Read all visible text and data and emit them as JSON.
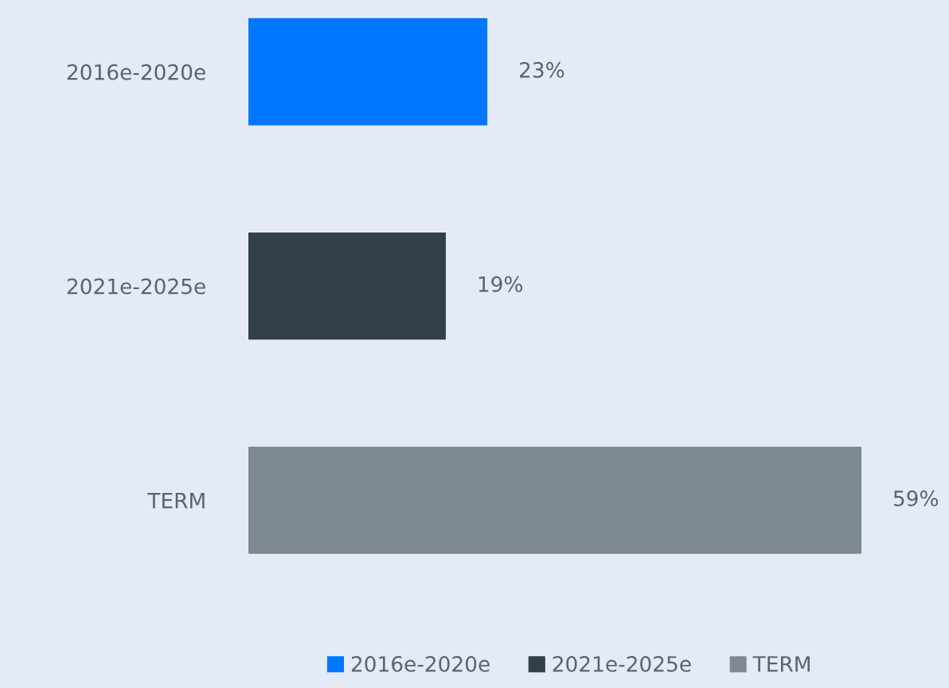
{
  "chart_data": {
    "type": "bar",
    "orientation": "horizontal",
    "categories": [
      "2016e-2020e",
      "2021e-2025e",
      "TERM"
    ],
    "series": [
      {
        "name": "2016e-2020e",
        "color": "#0077ff",
        "values": [
          23,
          null,
          null
        ],
        "value_labels": [
          "23%",
          null,
          null
        ]
      },
      {
        "name": "2021e-2025e",
        "color": "#333f4a",
        "values": [
          null,
          19,
          null
        ],
        "value_labels": [
          null,
          "19%",
          null
        ]
      },
      {
        "name": "TERM",
        "color": "#7f8a90",
        "values": [
          null,
          null,
          59
        ],
        "value_labels": [
          null,
          null,
          "59%"
        ]
      }
    ],
    "legend": "bottom"
  }
}
